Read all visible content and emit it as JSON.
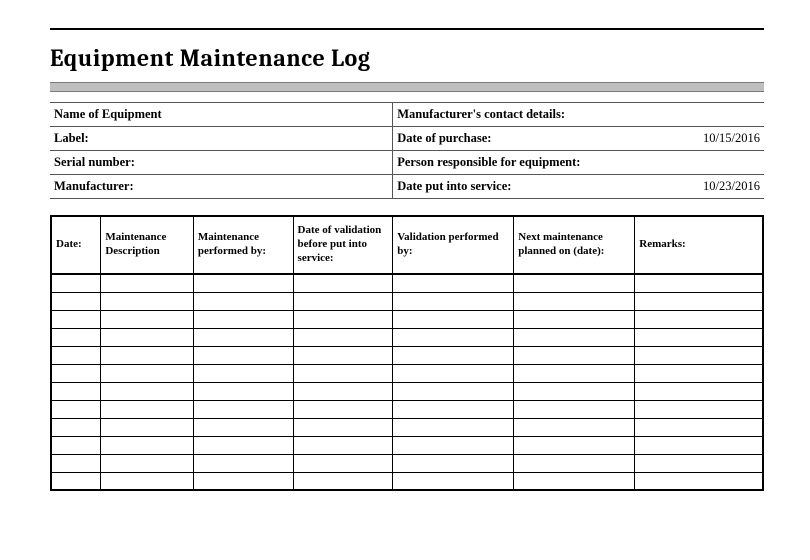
{
  "title": "Equipment Maintenance Log",
  "info_rows": [
    {
      "left_label": "Name of Equipment",
      "left_value": "",
      "right_label": "Manufacturer's contact details:",
      "right_value": ""
    },
    {
      "left_label": "Label:",
      "left_value": "",
      "right_label": "Date of purchase:",
      "right_value": "10/15/2016"
    },
    {
      "left_label": "Serial number:",
      "left_value": "",
      "right_label": "Person responsible for equipment:",
      "right_value": ""
    },
    {
      "left_label": "Manufacturer:",
      "left_value": "",
      "right_label": "Date put into service:",
      "right_value": "10/23/2016"
    }
  ],
  "log_columns": [
    {
      "label": "Date:",
      "width": "7%"
    },
    {
      "label": "Maintenance Description",
      "width": "13%"
    },
    {
      "label": "Maintenance performed by:",
      "width": "14%"
    },
    {
      "label": "Date of validation before put into service:",
      "width": "14%"
    },
    {
      "label": "Validation performed by:",
      "width": "17%"
    },
    {
      "label": "Next maintenance planned on (date):",
      "width": "17%"
    },
    {
      "label": "Remarks:",
      "width": "18%"
    }
  ],
  "log_rows": [
    [
      "",
      "",
      "",
      "",
      "",
      "",
      ""
    ],
    [
      "",
      "",
      "",
      "",
      "",
      "",
      ""
    ],
    [
      "",
      "",
      "",
      "",
      "",
      "",
      ""
    ],
    [
      "",
      "",
      "",
      "",
      "",
      "",
      ""
    ],
    [
      "",
      "",
      "",
      "",
      "",
      "",
      ""
    ],
    [
      "",
      "",
      "",
      "",
      "",
      "",
      ""
    ],
    [
      "",
      "",
      "",
      "",
      "",
      "",
      ""
    ],
    [
      "",
      "",
      "",
      "",
      "",
      "",
      ""
    ],
    [
      "",
      "",
      "",
      "",
      "",
      "",
      ""
    ],
    [
      "",
      "",
      "",
      "",
      "",
      "",
      ""
    ],
    [
      "",
      "",
      "",
      "",
      "",
      "",
      ""
    ],
    [
      "",
      "",
      "",
      "",
      "",
      "",
      ""
    ]
  ],
  "colors": {
    "title_underline_bg": "#bfbfbf",
    "rule": "#000000",
    "cell_border": "#000000",
    "info_border": "#555555"
  },
  "info_col_widths": {
    "left_label": "20%",
    "left_value": "28%",
    "right_label": "36%",
    "right_value": "16%"
  }
}
